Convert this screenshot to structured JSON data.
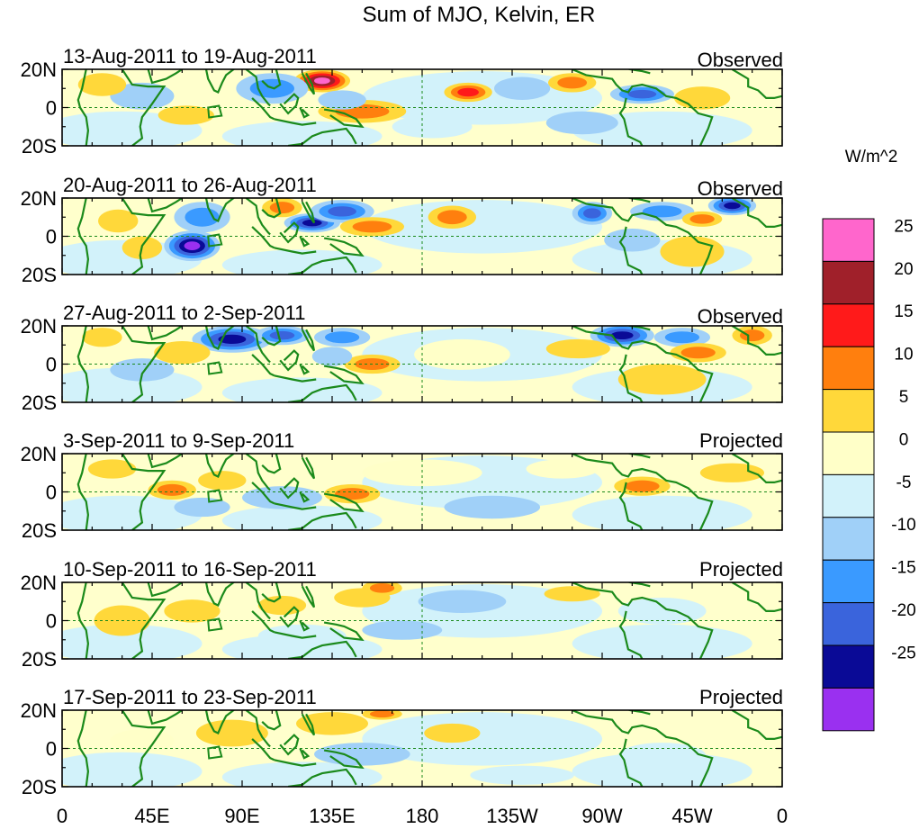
{
  "chart_data": {
    "type": "heatmap",
    "title": "Sum of MJO, Kelvin, ER",
    "units": "W/m^2",
    "xlabel": "",
    "ylabel": "",
    "lat_range": [
      -20,
      20
    ],
    "lon_range": [
      0,
      360
    ],
    "x_ticks": [
      "0",
      "45E",
      "90E",
      "135E",
      "180",
      "135W",
      "90W",
      "45W",
      "0"
    ],
    "y_ticks": [
      "20N",
      "0",
      "20S"
    ],
    "colorbar": {
      "labels": [
        "25",
        "20",
        "15",
        "10",
        "5",
        "0",
        "-5",
        "-10",
        "-15",
        "-20",
        "-25"
      ],
      "colors": [
        "#ff66cc",
        "#a0202a",
        "#ff1a1a",
        "#ff7f0e",
        "#ffd83a",
        "#ffffc8",
        "#d2f2fa",
        "#a0d0f8",
        "#3a9aff",
        "#3a64dc",
        "#0a0a96",
        "#9a30f0"
      ]
    },
    "panels": [
      {
        "period": "13-Aug-2011 to 19-Aug-2011",
        "status": "Observed",
        "blobs": [
          {
            "lon": 130,
            "lat": 14,
            "w": 14,
            "h": 6,
            "v": 27
          },
          {
            "lon": 105,
            "lat": 10,
            "w": 18,
            "h": 8,
            "v": -10
          },
          {
            "lon": 203,
            "lat": 8,
            "w": 12,
            "h": 5,
            "v": 18
          },
          {
            "lon": 230,
            "lat": 10,
            "w": 14,
            "h": 6,
            "v": -8
          },
          {
            "lon": 290,
            "lat": 7,
            "w": 16,
            "h": 5,
            "v": -18
          },
          {
            "lon": 255,
            "lat": 13,
            "w": 12,
            "h": 5,
            "v": 12
          },
          {
            "lon": 62,
            "lat": -4,
            "w": 14,
            "h": 5,
            "v": 9
          },
          {
            "lon": 150,
            "lat": -2,
            "w": 22,
            "h": 6,
            "v": 10
          },
          {
            "lon": 140,
            "lat": 4,
            "w": 12,
            "h": 5,
            "v": -7
          },
          {
            "lon": 40,
            "lat": 6,
            "w": 16,
            "h": 7,
            "v": -7
          },
          {
            "lon": 260,
            "lat": -8,
            "w": 18,
            "h": 6,
            "v": -5
          },
          {
            "lon": 20,
            "lat": 12,
            "w": 12,
            "h": 6,
            "v": 7
          },
          {
            "lon": 320,
            "lat": 5,
            "w": 14,
            "h": 6,
            "v": 5
          },
          {
            "lon": 185,
            "lat": -10,
            "w": 20,
            "h": 6,
            "v": -4
          }
        ]
      },
      {
        "period": "20-Aug-2011 to 26-Aug-2011",
        "status": "Observed",
        "blobs": [
          {
            "lon": 65,
            "lat": -5,
            "w": 14,
            "h": 8,
            "v": -26
          },
          {
            "lon": 70,
            "lat": 10,
            "w": 14,
            "h": 8,
            "v": -10
          },
          {
            "lon": 125,
            "lat": 7,
            "w": 14,
            "h": 5,
            "v": -20
          },
          {
            "lon": 140,
            "lat": 13,
            "w": 16,
            "h": 6,
            "v": -18
          },
          {
            "lon": 155,
            "lat": 5,
            "w": 16,
            "h": 5,
            "v": 14
          },
          {
            "lon": 195,
            "lat": 10,
            "w": 12,
            "h": 6,
            "v": 12
          },
          {
            "lon": 265,
            "lat": 12,
            "w": 10,
            "h": 6,
            "v": -15
          },
          {
            "lon": 300,
            "lat": 13,
            "w": 16,
            "h": 5,
            "v": -12
          },
          {
            "lon": 335,
            "lat": 16,
            "w": 12,
            "h": 5,
            "v": -24
          },
          {
            "lon": 320,
            "lat": 9,
            "w": 10,
            "h": 4,
            "v": 14
          },
          {
            "lon": 315,
            "lat": -8,
            "w": 16,
            "h": 8,
            "v": 9
          },
          {
            "lon": 110,
            "lat": 15,
            "w": 10,
            "h": 5,
            "v": 10
          },
          {
            "lon": 28,
            "lat": 8,
            "w": 10,
            "h": 6,
            "v": 7
          },
          {
            "lon": 40,
            "lat": -6,
            "w": 10,
            "h": 6,
            "v": 8
          },
          {
            "lon": 230,
            "lat": 0,
            "w": 22,
            "h": 6,
            "v": -4
          },
          {
            "lon": 285,
            "lat": -2,
            "w": 14,
            "h": 6,
            "v": -6
          }
        ]
      },
      {
        "period": "27-Aug-2011 to 2-Sep-2011",
        "status": "Observed",
        "blobs": [
          {
            "lon": 85,
            "lat": 13,
            "w": 20,
            "h": 7,
            "v": -22
          },
          {
            "lon": 110,
            "lat": 15,
            "w": 14,
            "h": 5,
            "v": -15
          },
          {
            "lon": 140,
            "lat": 14,
            "w": 14,
            "h": 5,
            "v": -12
          },
          {
            "lon": 155,
            "lat": 0,
            "w": 14,
            "h": 5,
            "v": 12
          },
          {
            "lon": 135,
            "lat": 4,
            "w": 10,
            "h": 5,
            "v": -7
          },
          {
            "lon": 280,
            "lat": 15,
            "w": 16,
            "h": 6,
            "v": -24
          },
          {
            "lon": 310,
            "lat": 14,
            "w": 14,
            "h": 5,
            "v": -12
          },
          {
            "lon": 318,
            "lat": 6,
            "w": 14,
            "h": 5,
            "v": 12
          },
          {
            "lon": 258,
            "lat": 8,
            "w": 16,
            "h": 5,
            "v": 8
          },
          {
            "lon": 345,
            "lat": 15,
            "w": 10,
            "h": 5,
            "v": 10
          },
          {
            "lon": 40,
            "lat": -3,
            "w": 16,
            "h": 6,
            "v": -6
          },
          {
            "lon": 60,
            "lat": 6,
            "w": 14,
            "h": 6,
            "v": 6
          },
          {
            "lon": 200,
            "lat": 5,
            "w": 24,
            "h": 8,
            "v": 4
          },
          {
            "lon": 300,
            "lat": -8,
            "w": 22,
            "h": 8,
            "v": 5
          },
          {
            "lon": 20,
            "lat": 14,
            "w": 10,
            "h": 5,
            "v": 7
          }
        ]
      },
      {
        "period": "3-Sep-2011 to 9-Sep-2011",
        "status": "Projected",
        "blobs": [
          {
            "lon": 55,
            "lat": 1,
            "w": 12,
            "h": 5,
            "v": 12
          },
          {
            "lon": 80,
            "lat": 6,
            "w": 12,
            "h": 5,
            "v": 7
          },
          {
            "lon": 145,
            "lat": -1,
            "w": 14,
            "h": 5,
            "v": 12
          },
          {
            "lon": 110,
            "lat": -3,
            "w": 20,
            "h": 6,
            "v": -7
          },
          {
            "lon": 70,
            "lat": -8,
            "w": 14,
            "h": 5,
            "v": -6
          },
          {
            "lon": 290,
            "lat": 3,
            "w": 14,
            "h": 5,
            "v": 12
          },
          {
            "lon": 335,
            "lat": 10,
            "w": 16,
            "h": 5,
            "v": 7
          },
          {
            "lon": 250,
            "lat": 12,
            "w": 18,
            "h": 5,
            "v": 4
          },
          {
            "lon": 215,
            "lat": -8,
            "w": 24,
            "h": 6,
            "v": -5
          },
          {
            "lon": 180,
            "lat": 10,
            "w": 30,
            "h": 7,
            "v": 4
          },
          {
            "lon": 25,
            "lat": 12,
            "w": 12,
            "h": 5,
            "v": 6
          }
        ]
      },
      {
        "period": "10-Sep-2011 to 16-Sep-2011",
        "status": "Projected",
        "blobs": [
          {
            "lon": 150,
            "lat": 12,
            "w": 14,
            "h": 5,
            "v": 9
          },
          {
            "lon": 160,
            "lat": 17,
            "w": 10,
            "h": 4,
            "v": 12
          },
          {
            "lon": 65,
            "lat": 5,
            "w": 14,
            "h": 6,
            "v": 9
          },
          {
            "lon": 110,
            "lat": 8,
            "w": 12,
            "h": 5,
            "v": 7
          },
          {
            "lon": 200,
            "lat": 10,
            "w": 22,
            "h": 6,
            "v": -5
          },
          {
            "lon": 170,
            "lat": -5,
            "w": 20,
            "h": 5,
            "v": -6
          },
          {
            "lon": 300,
            "lat": 5,
            "w": 22,
            "h": 7,
            "v": -4
          },
          {
            "lon": 255,
            "lat": 14,
            "w": 14,
            "h": 4,
            "v": 5
          },
          {
            "lon": 120,
            "lat": -8,
            "w": 22,
            "h": 6,
            "v": -4
          },
          {
            "lon": 30,
            "lat": 0,
            "w": 14,
            "h": 8,
            "v": 5
          }
        ]
      },
      {
        "period": "17-Sep-2011 to 23-Sep-2011",
        "status": "Projected",
        "blobs": [
          {
            "lon": 135,
            "lat": 13,
            "w": 18,
            "h": 6,
            "v": 7
          },
          {
            "lon": 160,
            "lat": 18,
            "w": 10,
            "h": 3,
            "v": 10
          },
          {
            "lon": 195,
            "lat": 8,
            "w": 14,
            "h": 5,
            "v": 6
          },
          {
            "lon": 85,
            "lat": 8,
            "w": 18,
            "h": 7,
            "v": 5
          },
          {
            "lon": 150,
            "lat": -3,
            "w": 24,
            "h": 6,
            "v": -5
          },
          {
            "lon": 240,
            "lat": 4,
            "w": 24,
            "h": 6,
            "v": -3
          },
          {
            "lon": 300,
            "lat": -4,
            "w": 22,
            "h": 7,
            "v": -4
          },
          {
            "lon": 40,
            "lat": 4,
            "w": 16,
            "h": 6,
            "v": 4
          },
          {
            "lon": 230,
            "lat": -14,
            "w": 26,
            "h": 5,
            "v": -3
          }
        ]
      }
    ]
  }
}
